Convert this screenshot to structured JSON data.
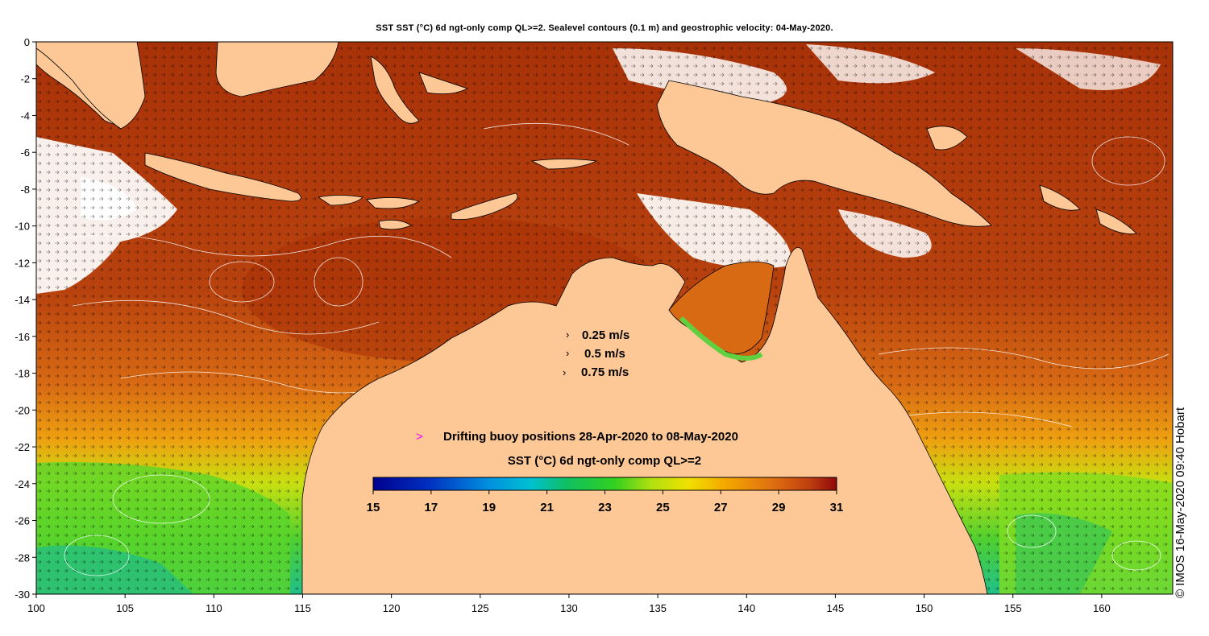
{
  "title": "SST SST (°C) 6d ngt-only comp QL>=2. Sealevel contours (0.1 m) and geostrophic velocity: 04-May-2020.",
  "copyright": "© IMOS 16-May-2020 09:40 Hobart",
  "axes": {
    "lon_ticks": [
      "100",
      "105",
      "110",
      "115",
      "120",
      "125",
      "130",
      "135",
      "140",
      "145",
      "150",
      "155",
      "160"
    ],
    "lat_ticks": [
      "0",
      "-2",
      "-4",
      "-6",
      "-8",
      "-10",
      "-12",
      "-14",
      "-16",
      "-18",
      "-20",
      "-22",
      "-24",
      "-26",
      "-28",
      "-30"
    ],
    "lon_range": [
      100,
      164
    ],
    "lat_range": [
      -30,
      0
    ]
  },
  "velocity_legend": [
    "0.25 m/s",
    "0.5 m/s",
    "0.75 m/s"
  ],
  "buoy_legend": {
    "symbol": ">",
    "label": "Drifting buoy positions 28-Apr-2020 to 08-May-2020",
    "color": "#ff00ff"
  },
  "colorbar": {
    "title": "SST (°C) 6d ngt-only comp QL>=2",
    "ticks": [
      "15",
      "17",
      "19",
      "21",
      "23",
      "25",
      "27",
      "29",
      "31"
    ],
    "range": [
      15,
      31
    ]
  },
  "colors": {
    "land": "#fdc896",
    "warm": "#b8400f",
    "hot": "#a52e08",
    "mid": "#d35e12",
    "cool": "#7ad62a",
    "cold": "#2fbf6a",
    "cloud": "#ffffff"
  }
}
